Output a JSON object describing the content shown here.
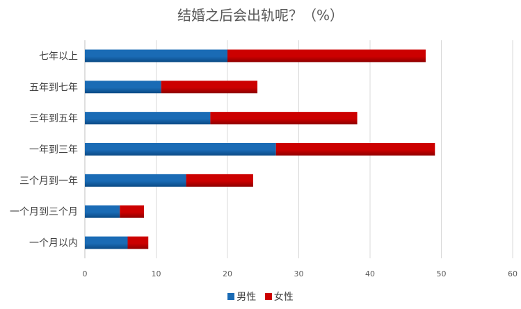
{
  "chart_data": {
    "type": "bar",
    "orientation": "horizontal",
    "stacked": true,
    "title": "结婚之后会出轨呢？（%）",
    "categories": [
      "七年以上",
      "五年到七年",
      "三年到五年",
      "一年到三年",
      "三个月到一年",
      "一个月到三个月",
      "一个月以内"
    ],
    "series": [
      {
        "name": "男性",
        "color": "#1a6bb5",
        "values": [
          20,
          10.7,
          17.6,
          26.8,
          14.2,
          4.9,
          6.0
        ]
      },
      {
        "name": "女性",
        "color": "#cc0000",
        "values": [
          27.8,
          13.5,
          20.6,
          22.3,
          9.4,
          3.4,
          2.9
        ]
      }
    ],
    "xlim": [
      0,
      60
    ],
    "xticks": [
      0,
      10,
      20,
      30,
      40,
      50,
      60
    ],
    "grid": true,
    "legend_position": "bottom"
  }
}
